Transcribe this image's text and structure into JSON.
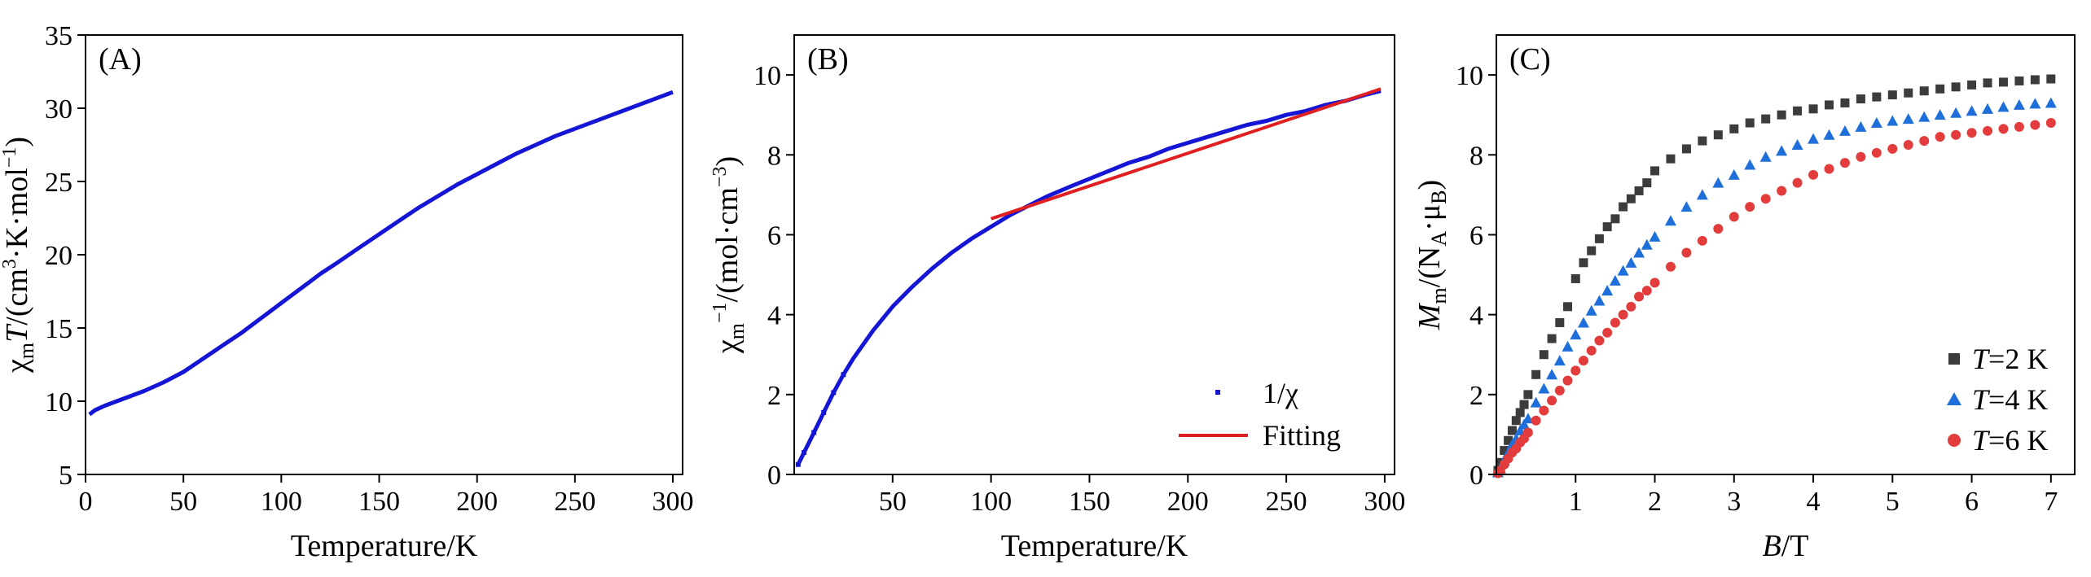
{
  "chart_data": [
    {
      "type": "scatter",
      "panel_label": "(A)",
      "xlabel": "Temperature/K",
      "ylabel": "χmT/(cm³·K·mol⁻¹)",
      "ylabel_parts": [
        "χ",
        "m",
        "T",
        "/(cm",
        "3",
        "·K·mol",
        "−1",
        ")"
      ],
      "xlim": [
        0,
        305
      ],
      "ylim": [
        5,
        35
      ],
      "xticks": [
        0,
        50,
        100,
        150,
        200,
        250,
        300
      ],
      "xtick_labels": [
        "0",
        "50",
        "100",
        "150",
        "200",
        "250",
        "300"
      ],
      "yticks": [
        5,
        10,
        15,
        20,
        25,
        30,
        35
      ],
      "ytick_labels": [
        "5",
        "10",
        "15",
        "20",
        "25",
        "30",
        "35"
      ],
      "series": [
        {
          "name": "χmT",
          "color": "#1515d6",
          "x": [
            2,
            5,
            10,
            20,
            30,
            40,
            50,
            60,
            70,
            80,
            90,
            100,
            110,
            120,
            128,
            140,
            150,
            160,
            170,
            180,
            190,
            200,
            210,
            220,
            230,
            240,
            250,
            260,
            270,
            280,
            290,
            300
          ],
          "y": [
            9.1,
            9.4,
            9.7,
            10.2,
            10.7,
            11.3,
            12.0,
            12.9,
            13.8,
            14.7,
            15.7,
            16.7,
            17.7,
            18.7,
            19.4,
            20.5,
            21.4,
            22.3,
            23.2,
            24.0,
            24.8,
            25.5,
            26.2,
            26.9,
            27.5,
            28.1,
            28.6,
            29.1,
            29.6,
            30.1,
            30.6,
            31.1
          ]
        }
      ]
    },
    {
      "type": "scatter",
      "panel_label": "(B)",
      "xlabel": "Temperature/K",
      "ylabel": "χm⁻¹/(mol·cm⁻³)",
      "ylabel_parts": [
        "χ",
        "m",
        "−1",
        "/(mol·cm",
        "−3",
        ")"
      ],
      "xlim": [
        0,
        305
      ],
      "ylim": [
        0,
        11
      ],
      "xticks": [
        50,
        100,
        150,
        200,
        250,
        300
      ],
      "xtick_labels": [
        "50",
        "100",
        "150",
        "200",
        "250",
        "300"
      ],
      "yticks": [
        0,
        2,
        4,
        6,
        8,
        10
      ],
      "ytick_labels": [
        "0",
        "2",
        "4",
        "6",
        "8",
        "10"
      ],
      "series": [
        {
          "name": "1/χ",
          "color": "#1515d6",
          "x": [
            2,
            5,
            10,
            15,
            20,
            25,
            30,
            40,
            50,
            60,
            70,
            80,
            90,
            100,
            110,
            120,
            128,
            140,
            150,
            160,
            170,
            180,
            190,
            200,
            210,
            220,
            230,
            240,
            250,
            260,
            270,
            280,
            290,
            298
          ],
          "y": [
            0.25,
            0.55,
            1.05,
            1.55,
            2.05,
            2.5,
            2.9,
            3.6,
            4.2,
            4.7,
            5.15,
            5.55,
            5.9,
            6.2,
            6.5,
            6.75,
            6.95,
            7.2,
            7.4,
            7.6,
            7.8,
            7.95,
            8.15,
            8.3,
            8.45,
            8.6,
            8.75,
            8.85,
            9.0,
            9.1,
            9.25,
            9.35,
            9.5,
            9.6
          ],
          "marker": "dot"
        },
        {
          "name": "Fitting",
          "color": "#e02020",
          "x": [
            100,
            298
          ],
          "y": [
            6.4,
            9.65
          ],
          "marker": "line"
        }
      ],
      "legend": {
        "position": "bottom-right",
        "entries": [
          "1/χ",
          "Fitting"
        ]
      }
    },
    {
      "type": "scatter",
      "panel_label": "(C)",
      "xlabel": "B/T",
      "xlabel_parts": [
        "B",
        "/T"
      ],
      "ylabel": "Mm/(NA·μB)",
      "ylabel_parts": [
        "M",
        "m",
        "/(N",
        "A",
        "·μ",
        "B",
        ")"
      ],
      "xlim": [
        0,
        7.3
      ],
      "ylim": [
        0,
        11
      ],
      "xticks": [
        1,
        2,
        3,
        4,
        5,
        6,
        7
      ],
      "xtick_labels": [
        "1",
        "2",
        "3",
        "4",
        "5",
        "6",
        "7"
      ],
      "yticks": [
        0,
        2,
        4,
        6,
        8,
        10
      ],
      "ytick_labels": [
        "0",
        "2",
        "4",
        "6",
        "8",
        "10"
      ],
      "series": [
        {
          "name": "T=2 K",
          "label_italic": "T",
          "label_rest": "=2 K",
          "color": "#3c3c3c",
          "marker": "square",
          "x": [
            0.02,
            0.05,
            0.1,
            0.15,
            0.2,
            0.25,
            0.3,
            0.35,
            0.4,
            0.5,
            0.6,
            0.7,
            0.8,
            0.9,
            1.0,
            1.1,
            1.2,
            1.3,
            1.4,
            1.5,
            1.6,
            1.7,
            1.8,
            1.9,
            2.0,
            2.2,
            2.4,
            2.6,
            2.8,
            3.0,
            3.2,
            3.4,
            3.6,
            3.8,
            4.0,
            4.2,
            4.4,
            4.6,
            4.8,
            5.0,
            5.2,
            5.4,
            5.6,
            5.8,
            6.0,
            6.2,
            6.4,
            6.6,
            6.8,
            7.0
          ],
          "y": [
            0.1,
            0.3,
            0.6,
            0.85,
            1.1,
            1.35,
            1.55,
            1.75,
            2.0,
            2.5,
            3.0,
            3.4,
            3.8,
            4.2,
            4.9,
            5.3,
            5.6,
            5.9,
            6.2,
            6.4,
            6.7,
            6.9,
            7.1,
            7.3,
            7.6,
            7.9,
            8.15,
            8.35,
            8.5,
            8.65,
            8.8,
            8.9,
            9.0,
            9.1,
            9.15,
            9.25,
            9.3,
            9.4,
            9.45,
            9.5,
            9.55,
            9.6,
            9.65,
            9.7,
            9.75,
            9.8,
            9.82,
            9.85,
            9.88,
            9.9
          ]
        },
        {
          "name": "T=4 K",
          "label_italic": "T",
          "label_rest": "=4 K",
          "color": "#1e6fd9",
          "marker": "triangle",
          "x": [
            0.02,
            0.05,
            0.1,
            0.15,
            0.2,
            0.25,
            0.3,
            0.35,
            0.4,
            0.5,
            0.6,
            0.7,
            0.8,
            0.9,
            1.0,
            1.1,
            1.2,
            1.3,
            1.4,
            1.5,
            1.6,
            1.7,
            1.8,
            1.9,
            2.0,
            2.2,
            2.4,
            2.6,
            2.8,
            3.0,
            3.2,
            3.4,
            3.6,
            3.8,
            4.0,
            4.2,
            4.4,
            4.6,
            4.8,
            5.0,
            5.2,
            5.4,
            5.6,
            5.8,
            6.0,
            6.2,
            6.4,
            6.6,
            6.8,
            7.0
          ],
          "y": [
            0.05,
            0.15,
            0.35,
            0.55,
            0.75,
            0.9,
            1.1,
            1.25,
            1.4,
            1.8,
            2.15,
            2.5,
            2.85,
            3.2,
            3.5,
            3.8,
            4.1,
            4.35,
            4.6,
            4.85,
            5.1,
            5.3,
            5.55,
            5.75,
            5.95,
            6.35,
            6.7,
            7.0,
            7.3,
            7.5,
            7.75,
            7.95,
            8.1,
            8.25,
            8.4,
            8.5,
            8.6,
            8.7,
            8.8,
            8.85,
            8.9,
            8.95,
            9.0,
            9.05,
            9.1,
            9.15,
            9.2,
            9.25,
            9.28,
            9.3
          ]
        },
        {
          "name": "T=6 K",
          "label_italic": "T",
          "label_rest": "=6 K",
          "color": "#e23c3c",
          "marker": "circle",
          "x": [
            0.02,
            0.05,
            0.1,
            0.15,
            0.2,
            0.25,
            0.3,
            0.35,
            0.4,
            0.5,
            0.6,
            0.7,
            0.8,
            0.9,
            1.0,
            1.1,
            1.2,
            1.3,
            1.4,
            1.5,
            1.6,
            1.7,
            1.8,
            1.9,
            2.0,
            2.2,
            2.4,
            2.6,
            2.8,
            3.0,
            3.2,
            3.4,
            3.6,
            3.8,
            4.0,
            4.2,
            4.4,
            4.6,
            4.8,
            5.0,
            5.2,
            5.4,
            5.6,
            5.8,
            6.0,
            6.2,
            6.4,
            6.6,
            6.8,
            7.0
          ],
          "y": [
            0.03,
            0.1,
            0.25,
            0.4,
            0.55,
            0.65,
            0.8,
            0.9,
            1.05,
            1.35,
            1.6,
            1.85,
            2.1,
            2.35,
            2.6,
            2.85,
            3.1,
            3.35,
            3.55,
            3.8,
            4.0,
            4.2,
            4.45,
            4.6,
            4.8,
            5.2,
            5.55,
            5.85,
            6.15,
            6.45,
            6.7,
            6.9,
            7.1,
            7.3,
            7.5,
            7.65,
            7.8,
            7.95,
            8.05,
            8.15,
            8.25,
            8.35,
            8.45,
            8.5,
            8.55,
            8.6,
            8.65,
            8.7,
            8.75,
            8.8
          ]
        }
      ],
      "legend": {
        "position": "bottom-right",
        "entries": [
          "T=2 K",
          "T=4 K",
          "T=6 K"
        ]
      }
    }
  ]
}
